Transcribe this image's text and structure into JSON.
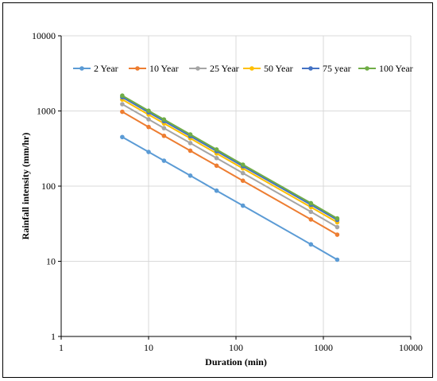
{
  "chart_data": {
    "type": "line",
    "title": "",
    "xlabel": "Duration (min)",
    "ylabel": "Rainfall intensity (mm/hr)",
    "x_scale": "log",
    "y_scale": "log",
    "xlim": [
      1,
      10000
    ],
    "ylim": [
      1,
      10000
    ],
    "x_tick_labels": [
      "1",
      "10",
      "100",
      "1000",
      "10000"
    ],
    "y_tick_labels": [
      "1",
      "10",
      "100",
      "1000",
      "10000"
    ],
    "grid": true,
    "legend_position": "top",
    "x": [
      5,
      10,
      15,
      30,
      60,
      120,
      720,
      1440
    ],
    "series": [
      {
        "name": "2 Year",
        "color": "#5b9bd5",
        "values": [
          450,
          285,
          218,
          138,
          87,
          55,
          16.8,
          10.5
        ]
      },
      {
        "name": "10 Year",
        "color": "#ed7d31",
        "values": [
          975,
          612,
          467,
          296,
          187,
          118,
          36,
          22.6
        ]
      },
      {
        "name": "25 Year",
        "color": "#a5a5a5",
        "values": [
          1230,
          775,
          591,
          374,
          236,
          149,
          45.5,
          28.5
        ]
      },
      {
        "name": "50 Year",
        "color": "#ffc000",
        "values": [
          1420,
          895,
          683,
          432,
          272,
          172,
          52.5,
          33
        ]
      },
      {
        "name": "75 year",
        "color": "#4472c4",
        "values": [
          1525,
          960,
          733,
          463,
          292,
          184,
          56.5,
          35.5
        ]
      },
      {
        "name": "100 Year",
        "color": "#70ad47",
        "values": [
          1600,
          1008,
          770,
          487,
          307,
          193,
          59.3,
          37.2
        ]
      }
    ]
  }
}
